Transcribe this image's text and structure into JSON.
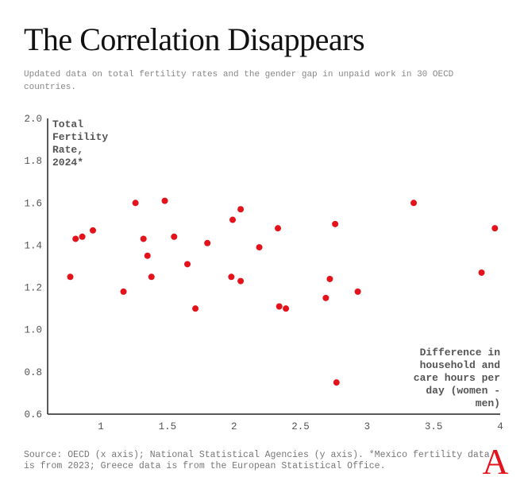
{
  "header": {
    "title": "The Correlation Disappears",
    "subtitle": "Updated data on total fertility rates and the gender gap in unpaid work in 30 OECD countries."
  },
  "footer": {
    "source": "Source: OECD (x axis); National Statistical Agencies (y axis). *Mexico fertility data is from 2023; Greece data is from the European Statistical Office."
  },
  "logo": {
    "letter": "A",
    "color": "#e3121b"
  },
  "colors": {
    "point": "#e3121b",
    "axis": "#222222",
    "label": "#555555"
  },
  "chart_data": {
    "type": "scatter",
    "title": "The Correlation Disappears",
    "xlabel": "Difference in household and care hours per day (women - men)",
    "ylabel": "Total Fertility Rate, 2024*",
    "xlim": [
      0.6,
      4
    ],
    "ylim": [
      0.6,
      2.0
    ],
    "x_ticks": [
      "1",
      "1.5",
      "2",
      "2.5",
      "3",
      "3.5",
      "4"
    ],
    "y_ticks": [
      "0.6",
      "0.8",
      "1.0",
      "1.2",
      "1.4",
      "1.6",
      "1.8",
      "2.0"
    ],
    "grid": false,
    "points": [
      {
        "x": 0.77,
        "y": 1.25
      },
      {
        "x": 0.81,
        "y": 1.43
      },
      {
        "x": 0.86,
        "y": 1.44
      },
      {
        "x": 0.94,
        "y": 1.47
      },
      {
        "x": 1.17,
        "y": 1.18
      },
      {
        "x": 1.26,
        "y": 1.6
      },
      {
        "x": 1.32,
        "y": 1.43
      },
      {
        "x": 1.35,
        "y": 1.35
      },
      {
        "x": 1.38,
        "y": 1.25
      },
      {
        "x": 1.48,
        "y": 1.61
      },
      {
        "x": 1.55,
        "y": 1.44
      },
      {
        "x": 1.65,
        "y": 1.31
      },
      {
        "x": 1.71,
        "y": 1.1
      },
      {
        "x": 1.8,
        "y": 1.41
      },
      {
        "x": 1.98,
        "y": 1.25
      },
      {
        "x": 1.99,
        "y": 1.52
      },
      {
        "x": 2.05,
        "y": 1.57
      },
      {
        "x": 2.05,
        "y": 1.23
      },
      {
        "x": 2.19,
        "y": 1.39
      },
      {
        "x": 2.33,
        "y": 1.48
      },
      {
        "x": 2.34,
        "y": 1.11
      },
      {
        "x": 2.39,
        "y": 1.1
      },
      {
        "x": 2.69,
        "y": 1.15
      },
      {
        "x": 2.72,
        "y": 1.24
      },
      {
        "x": 2.76,
        "y": 1.5
      },
      {
        "x": 2.77,
        "y": 0.75
      },
      {
        "x": 2.93,
        "y": 1.18
      },
      {
        "x": 3.35,
        "y": 1.6
      },
      {
        "x": 3.86,
        "y": 1.27
      },
      {
        "x": 3.96,
        "y": 1.48
      }
    ]
  }
}
